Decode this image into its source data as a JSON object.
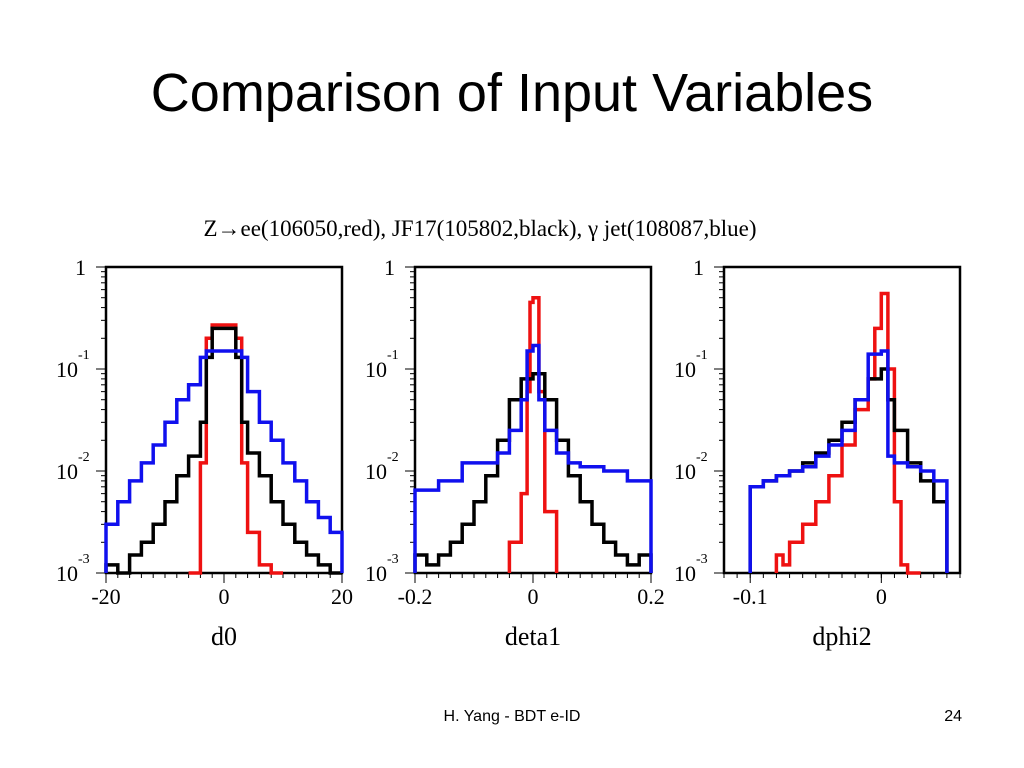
{
  "slide": {
    "title": "Comparison of Input Variables",
    "footer": "H. Yang - BDT e-ID",
    "page_number": "24"
  },
  "figure": {
    "caption": "Z→ee(106050,red), JF17(105802,black), γ jet(108087,blue)"
  },
  "colors": {
    "red": "#ee1111",
    "black": "#000000",
    "blue": "#1010ee"
  },
  "chart_data": [
    {
      "type": "histogram",
      "xlabel": "d0",
      "xlim": [
        -20,
        20
      ],
      "ylim": [
        0.001,
        1
      ],
      "yscale": "log",
      "xticks": [
        {
          "v": -20,
          "label": "-20"
        },
        {
          "v": 0,
          "label": "0"
        },
        {
          "v": 20,
          "label": "20"
        }
      ],
      "yticks": [
        {
          "v": 1,
          "base": "1",
          "exp": ""
        },
        {
          "v": 0.1,
          "base": "10",
          "exp": "-1"
        },
        {
          "v": 0.01,
          "base": "10",
          "exp": "-2"
        },
        {
          "v": 0.001,
          "base": "10",
          "exp": "-3"
        }
      ],
      "series": [
        {
          "color": "red",
          "xs": [
            -6,
            -4,
            -3,
            -2,
            2,
            3,
            4,
            6,
            8,
            10
          ],
          "values": [
            0.001,
            0.012,
            0.2,
            0.27,
            0.2,
            0.012,
            0.0025,
            0.0012,
            0.001
          ]
        },
        {
          "color": "black",
          "xs": [
            -20,
            -18,
            -16,
            -14,
            -12,
            -10,
            -8,
            -6,
            -4,
            -3,
            -2,
            2,
            3,
            4,
            6,
            8,
            10,
            12,
            14,
            16,
            18,
            20
          ],
          "values": [
            0.0012,
            0.001,
            0.0015,
            0.002,
            0.003,
            0.005,
            0.009,
            0.014,
            0.03,
            0.13,
            0.25,
            0.13,
            0.03,
            0.015,
            0.009,
            0.005,
            0.003,
            0.002,
            0.0015,
            0.0012,
            0.001
          ]
        },
        {
          "color": "blue",
          "xs": [
            -20,
            -18,
            -16,
            -14,
            -12,
            -10,
            -8,
            -6,
            -4,
            -3,
            3,
            4,
            6,
            8,
            10,
            12,
            14,
            16,
            18,
            20
          ],
          "values": [
            0.003,
            0.005,
            0.008,
            0.012,
            0.018,
            0.03,
            0.05,
            0.07,
            0.13,
            0.15,
            0.13,
            0.06,
            0.03,
            0.02,
            0.012,
            0.008,
            0.005,
            0.0035,
            0.0025
          ]
        }
      ]
    },
    {
      "type": "histogram",
      "xlabel": "deta1",
      "xlim": [
        -0.2,
        0.2
      ],
      "ylim": [
        0.001,
        1
      ],
      "yscale": "log",
      "xticks": [
        {
          "v": -0.2,
          "label": "-0.2"
        },
        {
          "v": 0,
          "label": "0"
        },
        {
          "v": 0.2,
          "label": "0.2"
        }
      ],
      "yticks": [
        {
          "v": 1,
          "base": "1",
          "exp": ""
        },
        {
          "v": 0.1,
          "base": "10",
          "exp": "-1"
        },
        {
          "v": 0.01,
          "base": "10",
          "exp": "-2"
        },
        {
          "v": 0.001,
          "base": "10",
          "exp": "-3"
        }
      ],
      "series": [
        {
          "color": "red",
          "xs": [
            -0.04,
            -0.02,
            -0.01,
            -0.005,
            0.0,
            0.01,
            0.02,
            0.04
          ],
          "values": [
            0.002,
            0.006,
            0.06,
            0.45,
            0.5,
            0.06,
            0.004
          ]
        },
        {
          "color": "black",
          "xs": [
            -0.2,
            -0.18,
            -0.16,
            -0.14,
            -0.12,
            -0.1,
            -0.08,
            -0.06,
            -0.04,
            -0.02,
            0.0,
            0.02,
            0.04,
            0.06,
            0.08,
            0.1,
            0.12,
            0.14,
            0.16,
            0.18,
            0.2
          ],
          "values": [
            0.0015,
            0.0012,
            0.0015,
            0.002,
            0.003,
            0.005,
            0.009,
            0.02,
            0.05,
            0.08,
            0.09,
            0.05,
            0.02,
            0.009,
            0.005,
            0.003,
            0.002,
            0.0015,
            0.0012,
            0.0015
          ]
        },
        {
          "color": "blue",
          "xs": [
            -0.2,
            -0.16,
            -0.12,
            -0.08,
            -0.06,
            -0.04,
            -0.02,
            -0.01,
            0.0,
            0.01,
            0.02,
            0.04,
            0.06,
            0.08,
            0.12,
            0.16,
            0.2
          ],
          "values": [
            0.0065,
            0.008,
            0.012,
            0.012,
            0.015,
            0.025,
            0.05,
            0.15,
            0.17,
            0.05,
            0.025,
            0.015,
            0.012,
            0.011,
            0.01,
            0.008
          ]
        }
      ]
    },
    {
      "type": "histogram",
      "xlabel": "dphi2",
      "xlim": [
        -0.12,
        0.06
      ],
      "ylim": [
        0.001,
        1
      ],
      "yscale": "log",
      "xticks": [
        {
          "v": -0.1,
          "label": "-0.1"
        },
        {
          "v": 0,
          "label": "0"
        }
      ],
      "yticks": [
        {
          "v": 1,
          "base": "1",
          "exp": ""
        },
        {
          "v": 0.1,
          "base": "10",
          "exp": "-1"
        },
        {
          "v": 0.01,
          "base": "10",
          "exp": "-2"
        },
        {
          "v": 0.001,
          "base": "10",
          "exp": "-3"
        }
      ],
      "series": [
        {
          "color": "red",
          "xs": [
            -0.08,
            -0.075,
            -0.07,
            -0.06,
            -0.05,
            -0.04,
            -0.03,
            -0.02,
            -0.01,
            -0.005,
            0.0,
            0.005,
            0.01,
            0.015,
            0.02,
            0.03
          ],
          "values": [
            0.0015,
            0.0012,
            0.002,
            0.003,
            0.005,
            0.009,
            0.018,
            0.04,
            0.08,
            0.25,
            0.55,
            0.1,
            0.005,
            0.0012,
            0.001
          ]
        },
        {
          "color": "black",
          "xs": [
            -0.1,
            -0.09,
            -0.08,
            -0.07,
            -0.06,
            -0.05,
            -0.04,
            -0.03,
            -0.02,
            -0.01,
            0.0,
            0.005,
            0.01,
            0.02,
            0.03,
            0.04,
            0.05
          ],
          "values": [
            0.007,
            0.008,
            0.009,
            0.01,
            0.012,
            0.015,
            0.02,
            0.03,
            0.05,
            0.08,
            0.1,
            0.05,
            0.025,
            0.012,
            0.008,
            0.005
          ]
        },
        {
          "color": "blue",
          "xs": [
            -0.1,
            -0.09,
            -0.08,
            -0.07,
            -0.06,
            -0.05,
            -0.04,
            -0.03,
            -0.02,
            -0.01,
            0.0,
            0.005,
            0.01,
            0.02,
            0.03,
            0.04,
            0.05
          ],
          "values": [
            0.007,
            0.008,
            0.009,
            0.01,
            0.011,
            0.014,
            0.018,
            0.025,
            0.05,
            0.14,
            0.15,
            0.014,
            0.012,
            0.011,
            0.01,
            0.008
          ]
        }
      ]
    }
  ]
}
